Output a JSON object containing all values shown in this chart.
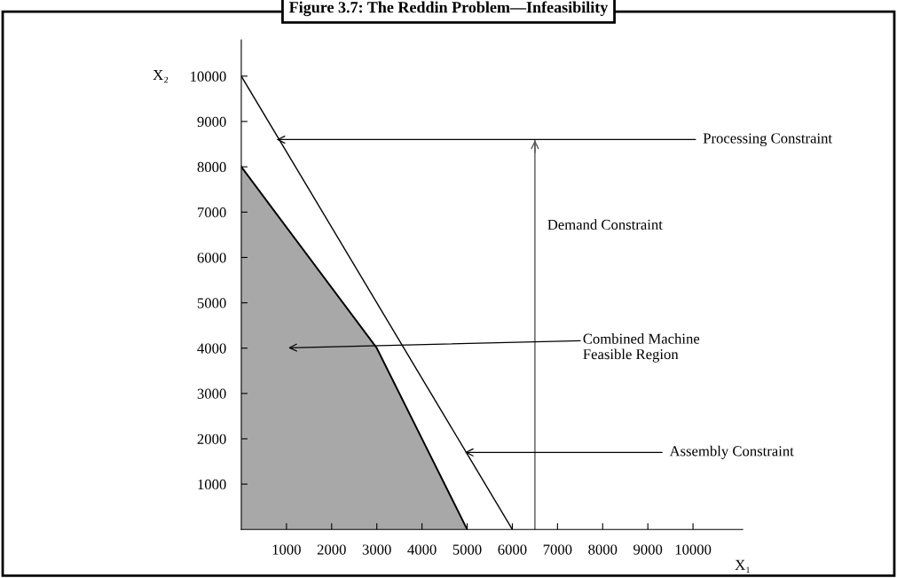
{
  "chart_data": {
    "type": "line",
    "title": "Figure 3.7: The Reddin Problem—Infeasibility",
    "xlabel": "X₁",
    "ylabel": "X₂",
    "series": [
      {
        "type": "area",
        "x": [
          0,
          3000,
          5000
        ],
        "values": [
          8000,
          4000,
          0
        ],
        "color": "#a8a8a8"
      },
      {
        "x": [
          0,
          6000
        ],
        "values": [
          10000,
          0
        ],
        "color": "#000000"
      }
    ],
    "ref_lines": [
      {
        "axis": "x",
        "value": 6500,
        "label": "Demand Constraint",
        "color": "#555555"
      }
    ],
    "xlim": [
      0,
      11100
    ],
    "ylim": [
      0,
      10800
    ],
    "xticks": [
      1000,
      2000,
      3000,
      4000,
      5000,
      6000,
      7000,
      8000,
      9000,
      10000
    ],
    "yticks": [
      1000,
      2000,
      3000,
      4000,
      5000,
      6000,
      7000,
      8000,
      9000,
      10000
    ],
    "grid": false,
    "annotations": [
      {
        "text": "Processing Constraint",
        "x": 780,
        "y": 8600
      },
      "Combined Machine\nFeasible Region",
      {
        "text": "Assembly Constraint",
        "x": 4950,
        "y": 1700
      }
    ]
  }
}
